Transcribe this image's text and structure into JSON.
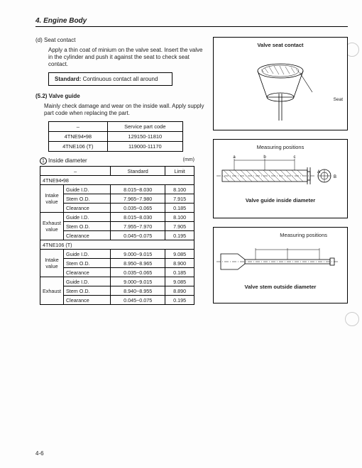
{
  "chapter": "4.  Engine Body",
  "sec_d_label": "(d) Seat contact",
  "sec_d_text": "Apply a thin coat of minium on the valve seat. Insert the valve in the cylinder and push it against the seat to check seat contact.",
  "std_label": "Standard:",
  "std_value": "Continuous contact all around",
  "sec_52_label": "(5.2) Valve guide",
  "sec_52_text": "Mainly check damage and wear on the inside wall. Apply supply part code when replacing the part.",
  "parts_table": {
    "header": [
      "–",
      "Service part code"
    ],
    "rows": [
      [
        "4TNE94•98",
        "129150-11810"
      ],
      [
        "4TNE106 (T)",
        "119000-11170"
      ]
    ]
  },
  "inside_label": "Inside diameter",
  "mm_label": "(mm)",
  "inside_header": [
    "–",
    "Standard",
    "Limit"
  ],
  "groups": [
    {
      "title": "4TNE94•98",
      "blocks": [
        {
          "name": "Intake value",
          "rows": [
            [
              "Guide I.D.",
              "8.015~8.030",
              "8.100"
            ],
            [
              "Stem O.D.",
              "7.965~7.980",
              "7.915"
            ],
            [
              "Clearance",
              "0.035~0.065",
              "0.185"
            ]
          ]
        },
        {
          "name": "Exhaust value",
          "rows": [
            [
              "Guide I.D.",
              "8.015~8.030",
              "8.100"
            ],
            [
              "Stem O.D.",
              "7.955~7.970",
              "7.905"
            ],
            [
              "Clearance",
              "0.045~0.075",
              "0.195"
            ]
          ]
        }
      ]
    },
    {
      "title": "4TNE106 (T)",
      "blocks": [
        {
          "name": "Intake value",
          "rows": [
            [
              "Guide I.D.",
              "9.000~9.015",
              "9.085"
            ],
            [
              "Stem O.D.",
              "8.950~8.965",
              "8.900"
            ],
            [
              "Clearance",
              "0.035~0.065",
              "0.185"
            ]
          ]
        },
        {
          "name": "Exhaust",
          "rows": [
            [
              "Guide I.D.",
              "9.000~9.015",
              "9.085"
            ],
            [
              "Stem O.D.",
              "8.940~8.955",
              "8.890"
            ],
            [
              "Clearance",
              "0.045~0.075",
              "0.195"
            ]
          ]
        }
      ]
    }
  ],
  "fig1_title": "Valve seat contact",
  "fig1_seat": "Seat",
  "fig2_title": "Measuring positions",
  "fig2_letters": [
    "a",
    "b",
    "c",
    "A",
    "B"
  ],
  "fig2_caption": "Valve guide inside diameter",
  "fig3_title": "Measuring positions",
  "fig3_caption": "Valve stem outside diameter",
  "page_no": "4-6"
}
